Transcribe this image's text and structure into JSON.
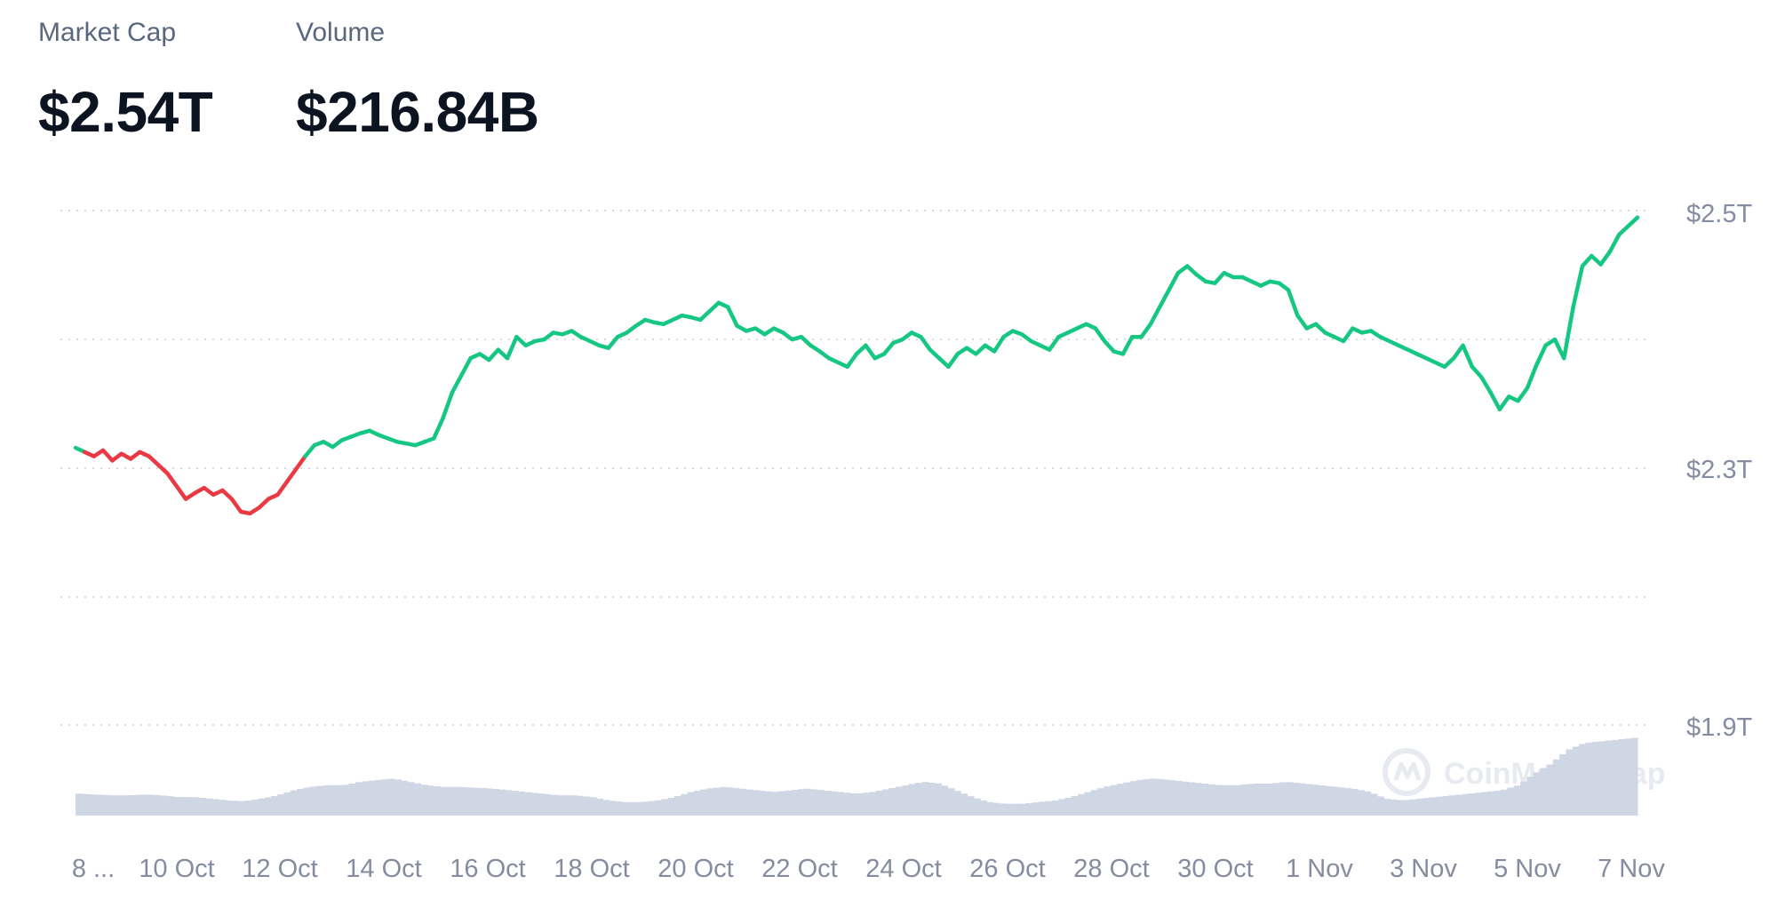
{
  "header": {
    "market_cap_label": "Market Cap",
    "market_cap_value": "$2.54T",
    "volume_label": "Volume",
    "volume_value": "$216.84B"
  },
  "watermark": "CoinMarketCap",
  "colors": {
    "up": "#16c784",
    "down": "#ea3943",
    "volume": "#cfd6e4",
    "grid": "#c9ced8",
    "axis_text": "#858ca2"
  },
  "chart_data": {
    "type": "line",
    "x_tick_labels": [
      "8 ...",
      "10 Oct",
      "12 Oct",
      "14 Oct",
      "16 Oct",
      "18 Oct",
      "20 Oct",
      "22 Oct",
      "24 Oct",
      "26 Oct",
      "28 Oct",
      "30 Oct",
      "1 Nov",
      "3 Nov",
      "5 Nov",
      "7 Nov"
    ],
    "y_tick_labels": [
      "$2.5T",
      "$2.3T",
      "$1.9T"
    ],
    "ylim": [
      1.9,
      2.5
    ],
    "y_unit": "trillion USD",
    "baseline": 2.22,
    "grid": true,
    "series": [
      {
        "values": [
          2.225,
          2.22,
          2.215,
          2.222,
          2.21,
          2.218,
          2.212,
          2.22,
          2.215,
          2.205,
          2.195,
          2.18,
          2.165,
          2.172,
          2.178,
          2.17,
          2.175,
          2.165,
          2.15,
          2.148,
          2.155,
          2.165,
          2.17,
          2.185,
          2.2,
          2.215,
          2.228,
          2.232,
          2.226,
          2.234,
          2.238,
          2.242,
          2.245,
          2.24,
          2.236,
          2.232,
          2.23,
          2.228,
          2.232,
          2.236,
          2.26,
          2.29,
          2.31,
          2.33,
          2.335,
          2.328,
          2.34,
          2.33,
          2.355,
          2.345,
          2.35,
          2.352,
          2.36,
          2.358,
          2.362,
          2.355,
          2.35,
          2.345,
          2.342,
          2.355,
          2.36,
          2.368,
          2.375,
          2.372,
          2.37,
          2.375,
          2.38,
          2.378,
          2.375,
          2.385,
          2.395,
          2.39,
          2.368,
          2.362,
          2.365,
          2.358,
          2.365,
          2.36,
          2.352,
          2.355,
          2.345,
          2.338,
          2.33,
          2.325,
          2.32,
          2.335,
          2.345,
          2.33,
          2.335,
          2.348,
          2.352,
          2.36,
          2.355,
          2.34,
          2.33,
          2.32,
          2.335,
          2.342,
          2.335,
          2.345,
          2.338,
          2.355,
          2.362,
          2.358,
          2.35,
          2.345,
          2.34,
          2.355,
          2.36,
          2.365,
          2.37,
          2.365,
          2.35,
          2.338,
          2.335,
          2.355,
          2.355,
          2.37,
          2.39,
          2.41,
          2.43,
          2.438,
          2.428,
          2.42,
          2.418,
          2.43,
          2.425,
          2.425,
          2.42,
          2.415,
          2.42,
          2.418,
          2.41,
          2.38,
          2.365,
          2.37,
          2.36,
          2.355,
          2.35,
          2.365,
          2.36,
          2.362,
          2.355,
          2.35,
          2.345,
          2.34,
          2.335,
          2.33,
          2.325,
          2.32,
          2.33,
          2.345,
          2.32,
          2.308,
          2.29,
          2.27,
          2.285,
          2.28,
          2.295,
          2.322,
          2.345,
          2.352,
          2.33,
          2.39,
          2.438,
          2.45,
          2.44,
          2.455,
          2.475,
          2.485,
          2.495
        ]
      }
    ]
  }
}
